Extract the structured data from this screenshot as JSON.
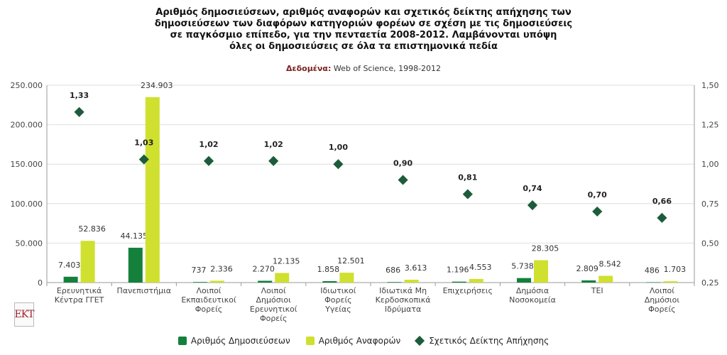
{
  "chart_data": {
    "type": "bar",
    "title_lines": [
      "Αριθμός δημοσιεύσεων, αριθμός αναφορών και σχετικός δείκτης απήχησης των",
      "δημοσιεύσεων των διαφόρων κατηγοριών φορέων σε σχέση με τις δημοσιεύσεις",
      "σε παγκόσμιο επίπεδο, για την πενταετία 2008-2012. Λαμβάνονται υπόψη",
      "όλες οι δημοσιεύσεις σε όλα τα επιστημονικά πεδία"
    ],
    "source_label": "Δεδομένα:",
    "source_text": "Web of Science, 1998-2012",
    "logo_text": "ΕΚΤ",
    "categories": [
      [
        "Ερευνητικά",
        "Κέντρα ΓΓΕΤ"
      ],
      [
        "Πανεπιστήμια"
      ],
      [
        "Λοιποί",
        "Εκπαιδευτικοί",
        "Φορείς"
      ],
      [
        "Λοιποί",
        "Δημόσιοι",
        "Ερευνητικοί",
        "Φορείς"
      ],
      [
        "Ιδιωτικοί",
        "Φορείς",
        "Υγείας"
      ],
      [
        "Ιδιωτικά Μη",
        "Κερδοσκοπικά",
        "Ιδρύματα"
      ],
      [
        "Επιχειρήσεις"
      ],
      [
        "Δημόσια",
        "Νοσοκομεία"
      ],
      [
        "ΤΕΙ"
      ],
      [
        "Λοιποί",
        "Δημόσιοι",
        "Φορείς"
      ]
    ],
    "series": [
      {
        "name": "Αριθμός Δημοσιεύσεων",
        "axis": "left",
        "kind": "bar",
        "color": "#14803c",
        "values": [
          7403,
          44135,
          737,
          2270,
          1858,
          686,
          1196,
          5738,
          2809,
          486
        ],
        "labels": [
          "7.403",
          "44.135",
          "737",
          "2.270",
          "1.858",
          "686",
          "1.196",
          "5.738",
          "2.809",
          "486"
        ]
      },
      {
        "name": "Αριθμός Αναφορών",
        "axis": "left",
        "kind": "bar",
        "color": "#cfe02f",
        "values": [
          52836,
          234903,
          2336,
          12135,
          12501,
          3613,
          4553,
          28305,
          8542,
          1703
        ],
        "labels": [
          "52.836",
          "234.903",
          "2.336",
          "12.135",
          "12.501",
          "3.613",
          "4.553",
          "28.305",
          "8.542",
          "1.703"
        ]
      },
      {
        "name": "Σχετικός Δείκτης Απήχησης",
        "axis": "right",
        "kind": "scatter",
        "color": "#1d5c3a",
        "values": [
          1.33,
          1.03,
          1.02,
          1.02,
          1.0,
          0.9,
          0.81,
          0.74,
          0.7,
          0.66
        ],
        "labels": [
          "1,33",
          "1,03",
          "1,02",
          "1,02",
          "1,00",
          "0,90",
          "0,81",
          "0,74",
          "0,70",
          "0,66"
        ]
      }
    ],
    "y_left": {
      "min": 0,
      "max": 250000,
      "ticks": [
        0,
        50000,
        100000,
        150000,
        200000,
        250000
      ],
      "tick_labels": [
        "0",
        "50.000",
        "100.000",
        "150.000",
        "200.000",
        "250.000"
      ]
    },
    "y_right": {
      "min": 0.25,
      "max": 1.5,
      "ticks": [
        0.25,
        0.5,
        0.75,
        1.0,
        1.25,
        1.5
      ],
      "tick_labels": [
        "0,25",
        "0,50",
        "0,75",
        "1,00",
        "1,25",
        "1,50"
      ]
    },
    "grid": true,
    "legend_position": "bottom-center"
  }
}
